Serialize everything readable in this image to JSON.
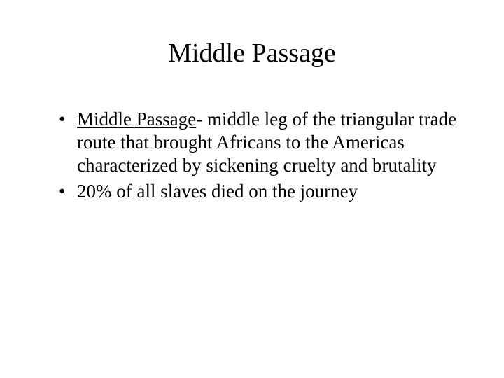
{
  "background_color": "#ffffff",
  "text_color": "#000000",
  "font_family": "Times New Roman",
  "title": {
    "text": "Middle Passage",
    "fontsize": 38,
    "align": "center"
  },
  "bullets": [
    {
      "term": "Middle Passage",
      "rest": "- middle leg of the triangular trade route that brought Africans to the Americas characterized by sickening cruelty and brutality"
    },
    {
      "term": "",
      "rest": "20% of all slaves died on the journey"
    }
  ],
  "bullet_fontsize": 27,
  "bullet_marker": "•"
}
